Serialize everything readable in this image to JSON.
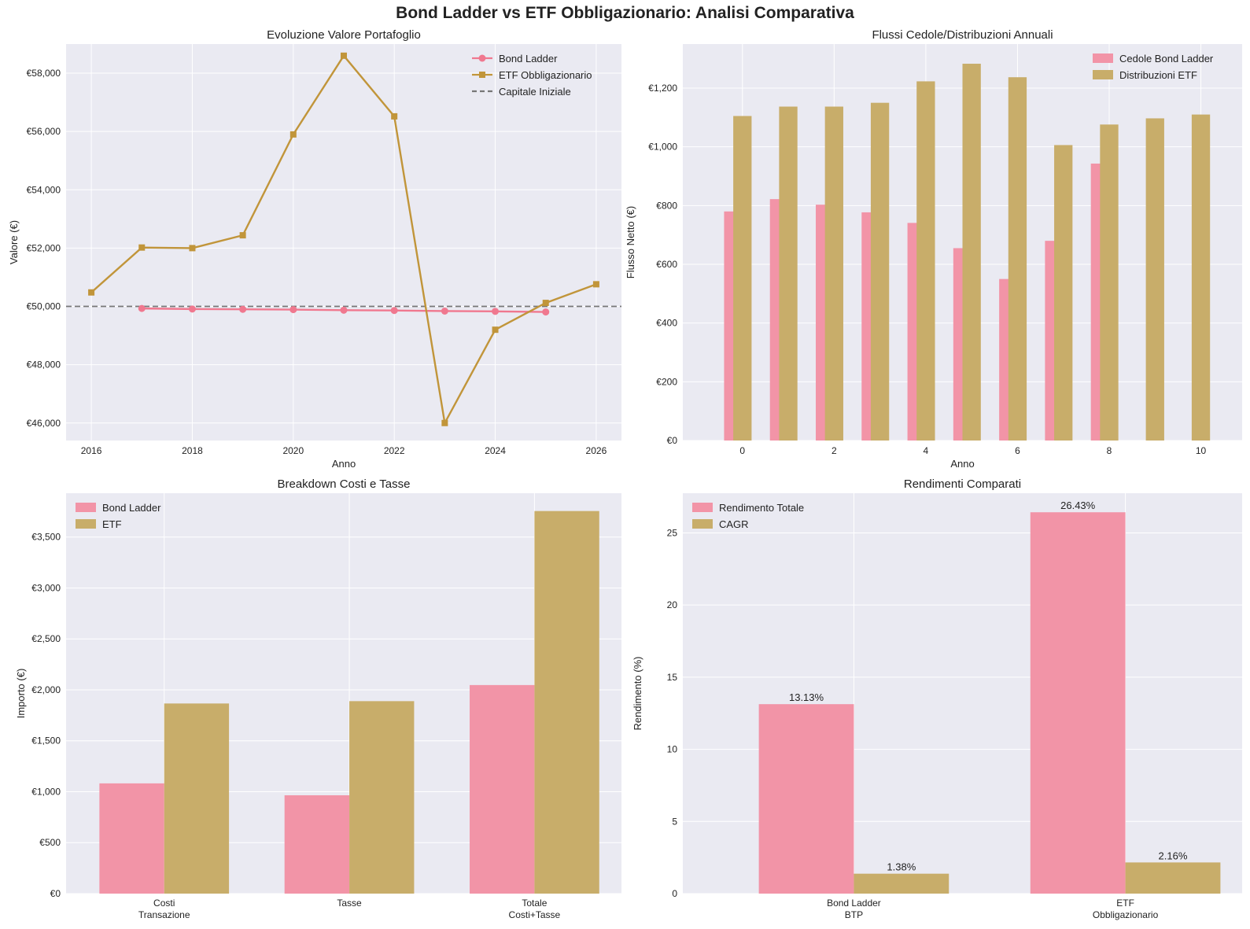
{
  "figure": {
    "suptitle": "Bond Ladder vs ETF Obbligazionario: Analisi Comparativa",
    "colors": {
      "bond": "#f0788f",
      "etf_line": "#c1953a",
      "etf_bar": "#c8ad6a",
      "bond_bar": "#f294a7",
      "dashed": "#777777",
      "panel_bg": "#eaeaf2",
      "grid": "#ffffff"
    }
  },
  "chart_data": [
    {
      "type": "line",
      "title": "Evoluzione Valore Portafoglio",
      "xlabel": "Anno",
      "ylabel": "Valore (€)",
      "xlim": [
        2015.5,
        2026.5
      ],
      "ylim": [
        45400,
        59000
      ],
      "xticks": [
        2016,
        2018,
        2020,
        2022,
        2024,
        2026
      ],
      "yticks": [
        46000,
        48000,
        50000,
        52000,
        54000,
        56000,
        58000
      ],
      "ytick_labels": [
        "€46,000",
        "€48,000",
        "€50,000",
        "€52,000",
        "€54,000",
        "€56,000",
        "€58,000"
      ],
      "legend": "top-right",
      "series": [
        {
          "name": "Bond Ladder",
          "marker": "circle",
          "x": [
            2017,
            2018,
            2019,
            2020,
            2021,
            2022,
            2023,
            2024,
            2025
          ],
          "values": [
            49930,
            49910,
            49900,
            49890,
            49870,
            49860,
            49840,
            49830,
            49810
          ]
        },
        {
          "name": "ETF Obbligazionario",
          "marker": "square",
          "x": [
            2016,
            2017,
            2018,
            2019,
            2020,
            2021,
            2022,
            2023,
            2024,
            2025,
            2026
          ],
          "values": [
            50480,
            52020,
            52000,
            52440,
            55900,
            58600,
            56520,
            46000,
            49200,
            50120,
            50760
          ]
        }
      ],
      "hline": {
        "name": "Capitale Iniziale",
        "value": 50000
      }
    },
    {
      "type": "bar",
      "title": "Flussi Cedole/Distribuzioni Annuali",
      "xlabel": "Anno",
      "ylabel": "Flusso Netto (€)",
      "xlim": [
        -1.3,
        10.9
      ],
      "ylim": [
        0,
        1350
      ],
      "xticks": [
        0,
        2,
        4,
        6,
        8,
        10
      ],
      "yticks": [
        0,
        200,
        400,
        600,
        800,
        1000,
        1200
      ],
      "ytick_labels": [
        "€0",
        "€200",
        "€400",
        "€600",
        "€800",
        "€1,000",
        "€1,200"
      ],
      "legend": "top-right",
      "series": [
        {
          "name": "Cedole Bond Ladder",
          "x": [
            -0.2,
            0.8,
            1.8,
            2.8,
            3.8,
            4.8,
            5.8,
            6.8,
            7.8
          ],
          "values": [
            780,
            822,
            803,
            777,
            741,
            655,
            550,
            680,
            943
          ]
        },
        {
          "name": "Distribuzioni ETF",
          "x": [
            0,
            1,
            2,
            3,
            4,
            5,
            6,
            7,
            8,
            9,
            10
          ],
          "values": [
            1105,
            1137,
            1137,
            1150,
            1223,
            1283,
            1237,
            1006,
            1076,
            1097,
            1110
          ]
        }
      ]
    },
    {
      "type": "bar",
      "title": "Breakdown Costi e Tasse",
      "xlabel": "",
      "ylabel": "Importo (€)",
      "categories": [
        "Costi\nTransazione",
        "Tasse",
        "Totale\nCosti+Tasse"
      ],
      "ylim": [
        0,
        3930
      ],
      "yticks": [
        0,
        500,
        1000,
        1500,
        2000,
        2500,
        3000,
        3500
      ],
      "ytick_labels": [
        "€0",
        "€500",
        "€1,000",
        "€1,500",
        "€2,000",
        "€2,500",
        "€3,000",
        "€3,500"
      ],
      "legend": "top-left",
      "series": [
        {
          "name": "Bond Ladder",
          "values": [
            1082,
            965,
            2047
          ]
        },
        {
          "name": "ETF",
          "values": [
            1866,
            1889,
            3755
          ]
        }
      ]
    },
    {
      "type": "bar",
      "title": "Rendimenti Comparati",
      "xlabel": "",
      "ylabel": "Rendimento (%)",
      "categories": [
        "Bond Ladder\nBTP",
        "ETF\nObbligazionario"
      ],
      "ylim": [
        0,
        27.75
      ],
      "yticks": [
        0,
        5,
        10,
        15,
        20,
        25
      ],
      "ytick_labels": [
        "0",
        "5",
        "10",
        "15",
        "20",
        "25"
      ],
      "legend": "top-left",
      "series": [
        {
          "name": "Rendimento Totale",
          "values": [
            13.13,
            26.43
          ],
          "labels": [
            "13.13%",
            "26.43%"
          ]
        },
        {
          "name": "CAGR",
          "values": [
            1.38,
            2.16
          ],
          "labels": [
            "1.38%",
            "2.16%"
          ]
        }
      ]
    }
  ]
}
